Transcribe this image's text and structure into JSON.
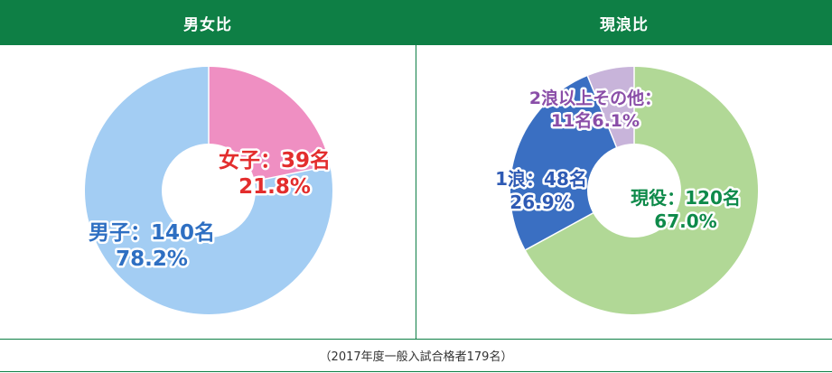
{
  "chart_data": [
    {
      "type": "pie",
      "title": "男女比",
      "categories": [
        "女子",
        "男子"
      ],
      "values": [
        39,
        140
      ],
      "percents": [
        "21.8%",
        "78.2%"
      ],
      "label_lines": [
        [
          "女子：39名",
          "21.8%"
        ],
        [
          "男子：140名",
          "78.2%"
        ]
      ],
      "colors": [
        "#ef8fc2",
        "#a3cdf3"
      ],
      "label_colors": [
        "#e32d2d",
        "#2e6fc2"
      ]
    },
    {
      "type": "pie",
      "title": "現浪比",
      "categories": [
        "現役",
        "1浪",
        "2浪以上その他"
      ],
      "values": [
        120,
        48,
        11
      ],
      "percents": [
        "67.0%",
        "26.9%",
        "6.1%"
      ],
      "label_lines": [
        [
          "現役：120名",
          "67.0%"
        ],
        [
          "1浪：48名",
          "26.9%"
        ],
        [
          "2浪以上その他：",
          "11名6.1%"
        ]
      ],
      "colors": [
        "#b1d896",
        "#3a6fc2",
        "#c8b4da"
      ],
      "label_colors": [
        "#0e8a4a",
        "#2e5ab4",
        "#8a4ea8"
      ]
    }
  ],
  "footer": "（2017年度一般入試合格者179名）"
}
